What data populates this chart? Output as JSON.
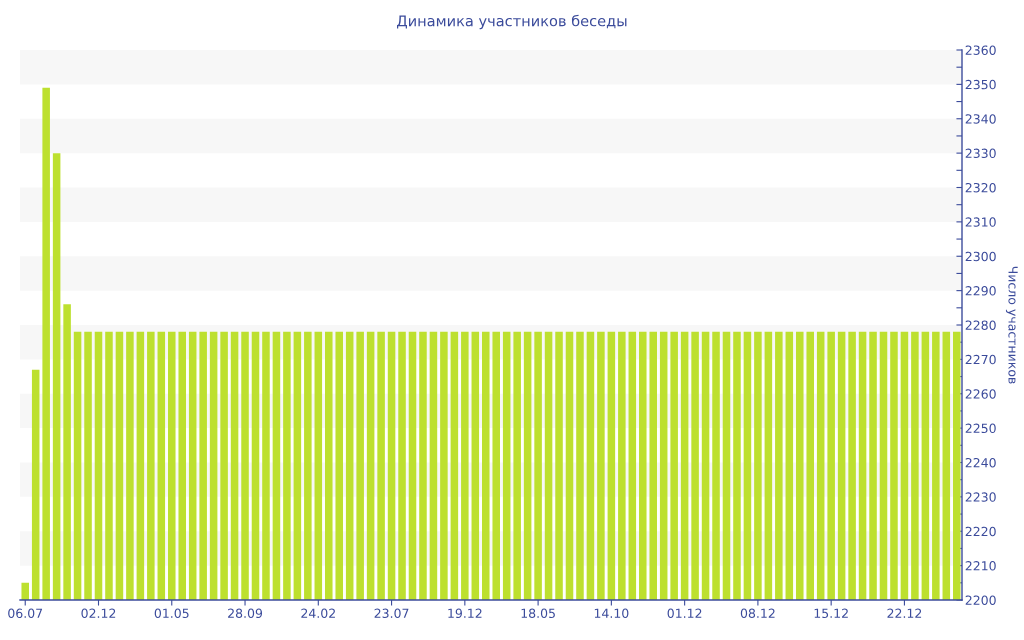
{
  "chart_data": {
    "type": "bar",
    "title": "Динамика участников беседы",
    "ylabel": "Число участников",
    "categories": [
      "06.07",
      null,
      null,
      null,
      null,
      null,
      null,
      "02.12",
      null,
      null,
      null,
      null,
      null,
      null,
      "01.05",
      null,
      null,
      null,
      null,
      null,
      null,
      "28.09",
      null,
      null,
      null,
      null,
      null,
      null,
      "24.02",
      null,
      null,
      null,
      null,
      null,
      null,
      "23.07",
      null,
      null,
      null,
      null,
      null,
      null,
      "19.12",
      null,
      null,
      null,
      null,
      null,
      null,
      "18.05",
      null,
      null,
      null,
      null,
      null,
      null,
      "14.10",
      null,
      null,
      null,
      null,
      null,
      null,
      "01.12",
      null,
      null,
      null,
      null,
      null,
      null,
      "08.12",
      null,
      null,
      null,
      null,
      null,
      null,
      "15.12",
      null,
      null,
      null,
      null,
      null,
      null,
      "22.12",
      null,
      null,
      null,
      null,
      null
    ],
    "values": [
      2205,
      2267,
      2349,
      2330,
      2286,
      2278,
      2278,
      2278,
      2278,
      2278,
      2278,
      2278,
      2278,
      2278,
      2278,
      2278,
      2278,
      2278,
      2278,
      2278,
      2278,
      2278,
      2278,
      2278,
      2278,
      2278,
      2278,
      2278,
      2278,
      2278,
      2278,
      2278,
      2278,
      2278,
      2278,
      2278,
      2278,
      2278,
      2278,
      2278,
      2278,
      2278,
      2278,
      2278,
      2278,
      2278,
      2278,
      2278,
      2278,
      2278,
      2278,
      2278,
      2278,
      2278,
      2278,
      2278,
      2278,
      2278,
      2278,
      2278,
      2278,
      2278,
      2278,
      2278,
      2278,
      2278,
      2278,
      2278,
      2278,
      2278,
      2278,
      2278,
      2278,
      2278,
      2278,
      2278,
      2278,
      2278,
      2278,
      2278,
      2278,
      2278,
      2278,
      2278,
      2278,
      2278,
      2278,
      2278,
      2278,
      2278
    ],
    "color": "#bde02f",
    "ylim": [
      2200,
      2360
    ],
    "yticks": [
      2200,
      {
        "value": 2205,
        "label": null
      },
      2210,
      {
        "value": 2215,
        "label": null
      },
      2220,
      {
        "value": 2225,
        "label": null
      },
      2230,
      {
        "value": 2235,
        "label": null
      },
      2240,
      {
        "value": 2245,
        "label": null
      },
      2250,
      {
        "value": 2255,
        "label": null
      },
      2260,
      {
        "value": 2265,
        "label": null
      },
      2270,
      {
        "value": 2275,
        "label": null
      },
      2280,
      {
        "value": 2285,
        "label": null
      },
      2290,
      {
        "value": 2295,
        "label": null
      },
      2300,
      {
        "value": 2305,
        "label": null
      },
      2310,
      {
        "value": 2315,
        "label": null
      },
      2320,
      {
        "value": 2325,
        "label": null
      },
      2330,
      {
        "value": 2335,
        "label": null
      },
      2340,
      {
        "value": 2345,
        "label": null
      },
      2350,
      {
        "value": 2355,
        "label": null
      },
      2360
    ],
    "bands": [
      {
        "axis": "y",
        "from": 2210,
        "to": 2220,
        "color": "#f7f7f7"
      },
      {
        "axis": "y",
        "from": 2230,
        "to": 2240,
        "color": "#f7f7f7"
      },
      {
        "axis": "y",
        "from": 2250,
        "to": 2260,
        "color": "#f7f7f7"
      },
      {
        "axis": "y",
        "from": 2270,
        "to": 2280,
        "color": "#f7f7f7"
      },
      {
        "axis": "y",
        "from": 2290,
        "to": 2300,
        "color": "#f7f7f7"
      },
      {
        "axis": "y",
        "from": 2310,
        "to": 2320,
        "color": "#f7f7f7"
      },
      {
        "axis": "y",
        "from": 2330,
        "to": 2340,
        "color": "#f7f7f7"
      },
      {
        "axis": "y",
        "from": 2350,
        "to": 2360,
        "color": "#f7f7f7"
      }
    ]
  }
}
